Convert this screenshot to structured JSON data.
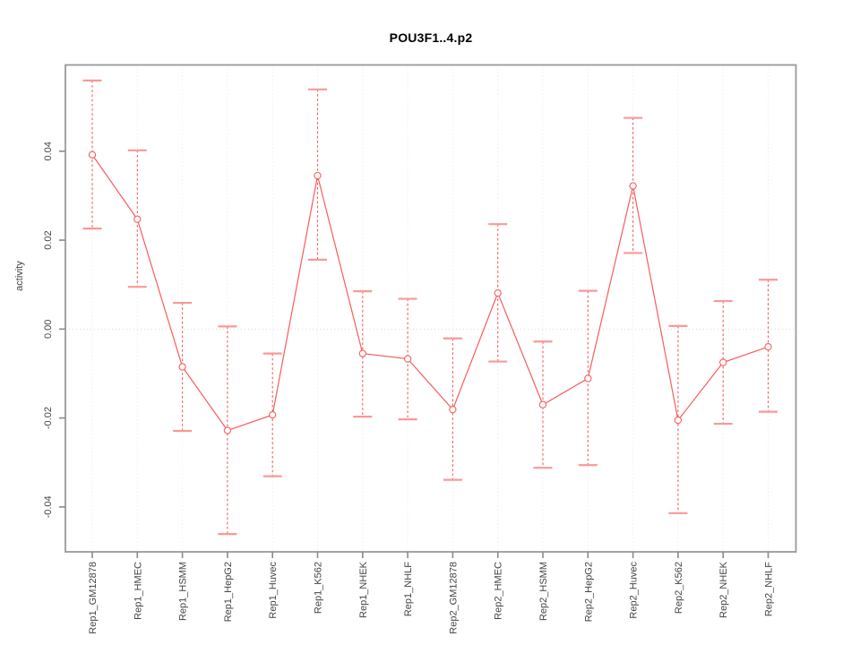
{
  "figure": {
    "title": "POU3F1..4.p2"
  },
  "chart_data": {
    "type": "line",
    "title": "POU3F1..4.p2",
    "xlabel": "",
    "ylabel": "activity",
    "legend_position": "none",
    "grid": "dotted vertical line per category; dotted horizontal line at y=0",
    "marker": "open-circle",
    "error_bars": "vertical dashed line with horizontal caps (confidence interval)",
    "ylim": [
      -0.0501,
      0.0594
    ],
    "yticks": [
      {
        "value": -0.04,
        "label": "-0.04"
      },
      {
        "value": -0.02,
        "label": "-0.02"
      },
      {
        "value": 0.0,
        "label": "0.00"
      },
      {
        "value": 0.02,
        "label": "0.02"
      },
      {
        "value": 0.04,
        "label": "0.04"
      }
    ],
    "categories": [
      "Rep1_GM12878",
      "Rep1_HMEC",
      "Rep1_HSMM",
      "Rep1_HepG2",
      "Rep1_Huvec",
      "Rep1_K562",
      "Rep1_NHEK",
      "Rep1_NHLF",
      "Rep2_GM12878",
      "Rep2_HMEC",
      "Rep2_HSMM",
      "Rep2_HepG2",
      "Rep2_Huvec",
      "Rep2_K562",
      "Rep2_NHEK",
      "Rep2_NHLF"
    ],
    "series": [
      {
        "name": "activity",
        "values": [
          0.0392,
          0.0247,
          -0.0085,
          -0.0228,
          -0.0193,
          0.0345,
          -0.0055,
          -0.0067,
          -0.0181,
          0.0081,
          -0.017,
          -0.0111,
          0.0322,
          -0.0205,
          -0.0075,
          -0.004
        ],
        "ci_lower": [
          0.0226,
          0.0095,
          -0.0229,
          -0.0461,
          -0.0331,
          0.0156,
          -0.0197,
          -0.0203,
          -0.0339,
          -0.0073,
          -0.0312,
          -0.0306,
          0.0171,
          -0.0414,
          -0.0213,
          -0.0186
        ],
        "ci_upper": [
          0.0559,
          0.0402,
          0.0059,
          0.0006,
          -0.0055,
          0.0539,
          0.0085,
          0.0068,
          -0.0021,
          0.0236,
          -0.0028,
          0.0086,
          0.0475,
          0.0007,
          0.0063,
          0.0111
        ]
      }
    ],
    "colors": {
      "line": "#f85c5c",
      "error_bar_dash": "#f85c5c",
      "error_bar_cap": "#fa9898",
      "marker_stroke": "#f85c5c",
      "marker_fill": "#ffffff",
      "grid": "#e6e6e6",
      "zero_line": "#d8d8d8",
      "border": "#999999",
      "tick": "#8a8a8a",
      "tick_text": "#444444",
      "title_text": "#000000"
    }
  }
}
